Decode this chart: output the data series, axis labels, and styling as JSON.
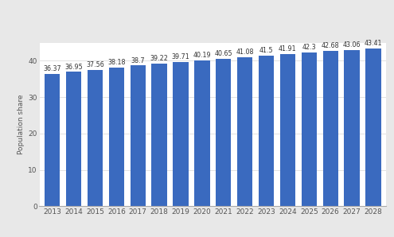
{
  "years": [
    2013,
    2014,
    2015,
    2016,
    2017,
    2018,
    2019,
    2020,
    2021,
    2022,
    2023,
    2024,
    2025,
    2026,
    2027,
    2028
  ],
  "values": [
    36.37,
    36.95,
    37.56,
    38.18,
    38.7,
    39.22,
    39.71,
    40.19,
    40.65,
    41.08,
    41.5,
    41.91,
    42.3,
    42.68,
    43.06,
    43.41
  ],
  "bar_color": "#3a6abf",
  "plot_bg_color": "#ffffff",
  "fig_bg_color": "#e8e8e8",
  "ylabel": "Population share",
  "ylim": [
    0,
    45
  ],
  "yticks": [
    0,
    10,
    20,
    30,
    40
  ],
  "label_fontsize": 5.8,
  "axis_fontsize": 6.5,
  "bar_width": 0.72
}
